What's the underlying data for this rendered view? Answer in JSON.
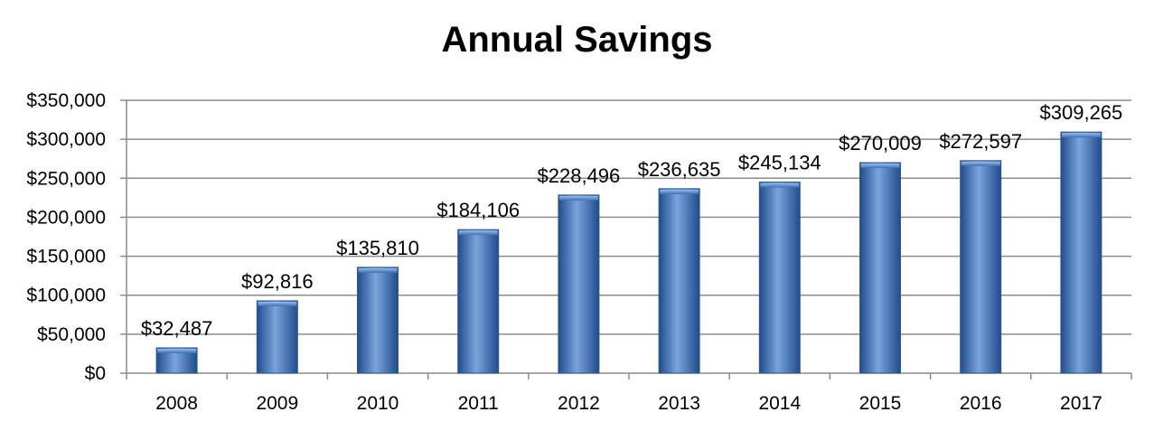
{
  "chart_data": {
    "type": "bar",
    "title": "Annual Savings",
    "xlabel": "",
    "ylabel": "",
    "categories": [
      "2008",
      "2009",
      "2010",
      "2011",
      "2012",
      "2013",
      "2014",
      "2015",
      "2016",
      "2017"
    ],
    "values": [
      32487,
      92816,
      135810,
      184106,
      228496,
      236635,
      245134,
      270009,
      272597,
      309265
    ],
    "data_labels": [
      "$32,487",
      "$92,816",
      "$135,810",
      "$184,106",
      "$228,496",
      "$236,635",
      "$245,134",
      "$270,009",
      "$272,597",
      "$309,265"
    ],
    "ylim": [
      0,
      350000
    ],
    "y_ticks": [
      0,
      50000,
      100000,
      150000,
      200000,
      250000,
      300000,
      350000
    ],
    "y_tick_labels": [
      "$0",
      "$50,000",
      "$100,000",
      "$150,000",
      "$200,000",
      "$250,000",
      "$300,000",
      "$350,000"
    ],
    "grid": true,
    "legend": "none",
    "bar_color": "#3a6fb8",
    "bar_color_dark": "#1f4c8c",
    "bar_color_light": "#7ba4dc",
    "gridline_color": "#8c8c8c"
  }
}
